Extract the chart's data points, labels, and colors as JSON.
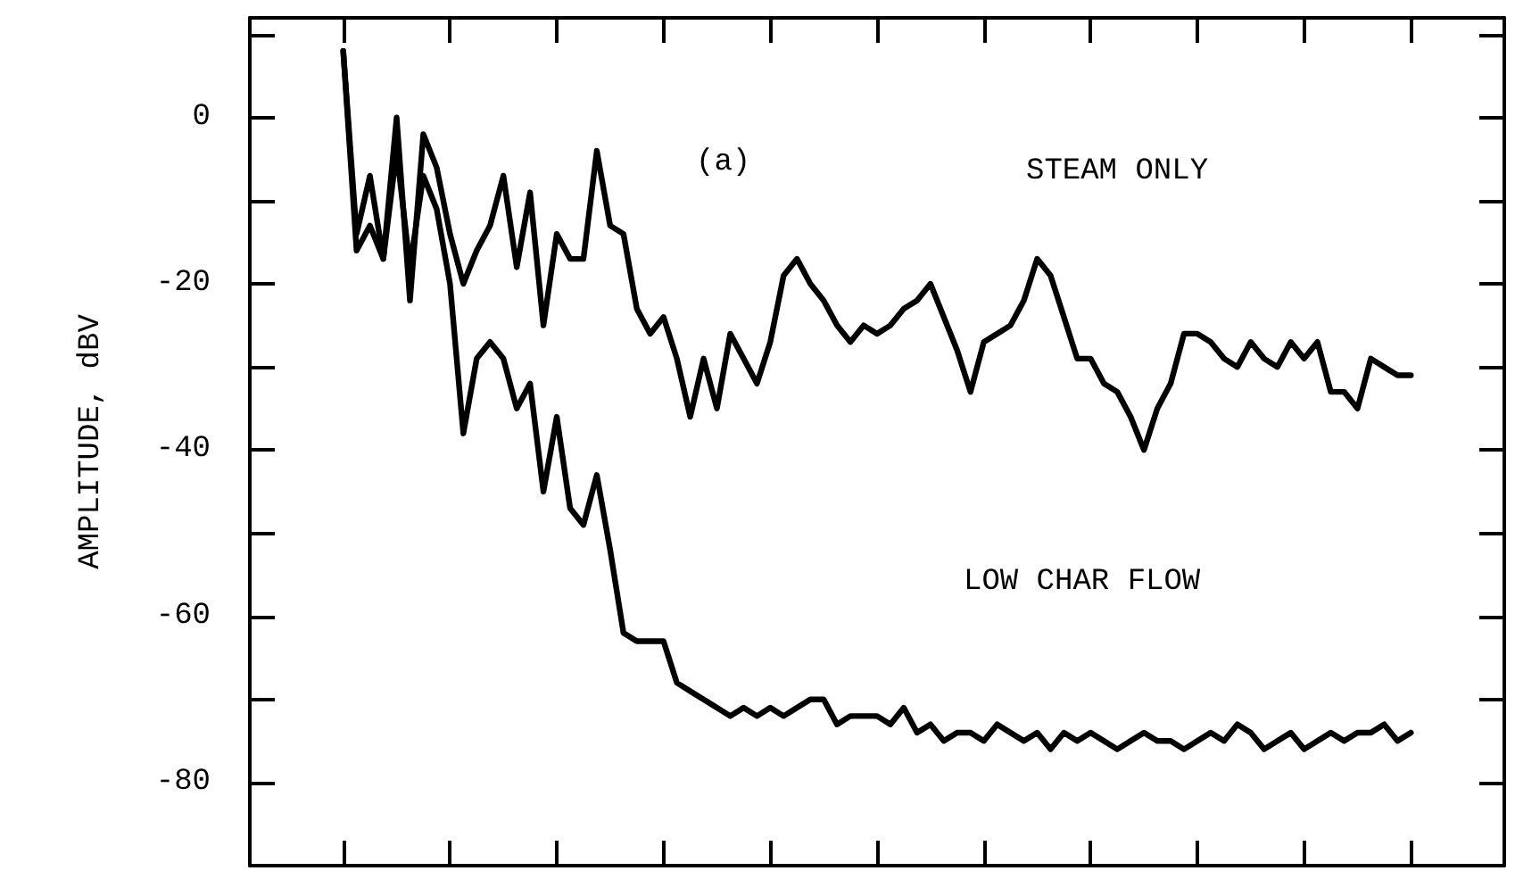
{
  "chart_data": {
    "type": "line",
    "ylabel": "AMPLITUDE, dBV",
    "annotations": [
      "(a)",
      "STEAM ONLY",
      "LOW CHAR FLOW"
    ],
    "categories": [
      null,
      null,
      null,
      null,
      null,
      null,
      null,
      null,
      null,
      null,
      null,
      null,
      null,
      null,
      null,
      null,
      null,
      null,
      null,
      null,
      null,
      null,
      null,
      null,
      null,
      null,
      null,
      null,
      null,
      null,
      null,
      null,
      null,
      null,
      null,
      null,
      null,
      null,
      null,
      null,
      null,
      null,
      null,
      null,
      null,
      null,
      null,
      null,
      null,
      null,
      null,
      null,
      null,
      null,
      null,
      null,
      null,
      null,
      null,
      null,
      null,
      null,
      null,
      null,
      null,
      null,
      null,
      null,
      null,
      null,
      null,
      null,
      null,
      null,
      null,
      null,
      null,
      null,
      null,
      null,
      null,
      null,
      null,
      null,
      null,
      null,
      null,
      null,
      null,
      null,
      null,
      null,
      null,
      null,
      null
    ],
    "series": [
      {
        "color": "#000000",
        "values": [
          null,
          null,
          null,
          null,
          null,
          null,
          null,
          8,
          -14,
          -7,
          -17,
          0,
          -22,
          -2,
          -6,
          -14,
          -20,
          -16,
          -13,
          -7,
          -18,
          -9,
          -25,
          -14,
          -17,
          -17,
          -4,
          -13,
          -14,
          -23,
          -26,
          -24,
          -29,
          -36,
          -29,
          -35,
          -26,
          -29,
          -32,
          -27,
          -19,
          -17,
          -20,
          -22,
          -25,
          -27,
          -25,
          -26,
          -25,
          -23,
          -22,
          -20,
          -24,
          -28,
          -33,
          -27,
          -26,
          -25,
          -22,
          -17,
          -19,
          -24,
          -29,
          -29,
          -32,
          -33,
          -36,
          -40,
          -35,
          -32,
          -26,
          -26,
          -27,
          -29,
          -30,
          -27,
          -29,
          -30,
          -27,
          -29,
          -27,
          -33,
          -33,
          -35,
          -29,
          -30,
          -31,
          -31,
          null,
          null,
          null,
          null,
          null,
          null,
          null
        ]
      },
      {
        "color": "#000000",
        "values": [
          null,
          null,
          null,
          null,
          null,
          null,
          null,
          8,
          -16,
          -13,
          -17,
          -4,
          -18,
          -7,
          -11,
          -20,
          -38,
          -29,
          -27,
          -29,
          -35,
          -32,
          -45,
          -36,
          -47,
          -49,
          -43,
          -52,
          -62,
          -63,
          -63,
          -63,
          -68,
          -69,
          -70,
          -71,
          -72,
          -71,
          -72,
          -71,
          -72,
          -71,
          -70,
          -70,
          -73,
          -72,
          -72,
          -72,
          -73,
          -71,
          -74,
          -73,
          -75,
          -74,
          -74,
          -75,
          -73,
          -74,
          -75,
          -74,
          -76,
          -74,
          -75,
          -74,
          -75,
          -76,
          -75,
          -74,
          -75,
          -75,
          -76,
          -75,
          -74,
          -75,
          -73,
          -74,
          -76,
          -75,
          -74,
          -76,
          -75,
          -74,
          -75,
          -74,
          -74,
          -73,
          -75,
          -74,
          null,
          null,
          null,
          null,
          null,
          null,
          null
        ]
      }
    ],
    "ylim": [
      -90,
      12
    ],
    "yticks": [
      {
        "value": -90,
        "label": null
      },
      -80,
      {
        "value": -70,
        "label": null
      },
      -60,
      {
        "value": -50,
        "label": null
      },
      -40,
      {
        "value": -30,
        "label": null
      },
      -20,
      {
        "value": -10,
        "label": null
      },
      0,
      {
        "value": 10,
        "label": null
      }
    ],
    "tick_labels": "y",
    "grid": false,
    "line_style": "solid"
  }
}
